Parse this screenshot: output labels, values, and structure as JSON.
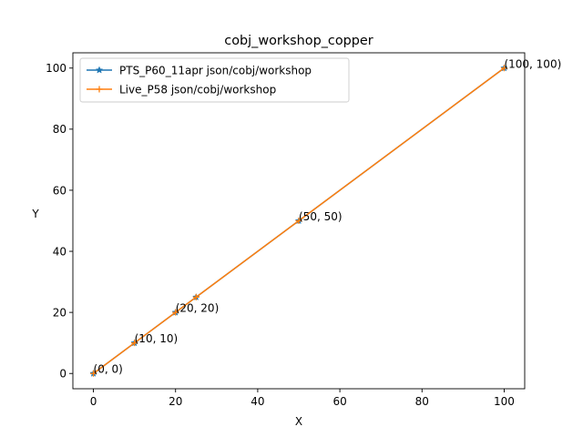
{
  "chart_data": {
    "type": "line",
    "title": "cobj_workshop_copper",
    "xlabel": "X",
    "ylabel": "Y",
    "xlim": [
      -5,
      105
    ],
    "ylim": [
      -5,
      105
    ],
    "xticks": [
      0,
      20,
      40,
      60,
      80,
      100
    ],
    "yticks": [
      0,
      20,
      40,
      60,
      80,
      100
    ],
    "grid": false,
    "legend_position": "top-left",
    "series": [
      {
        "name": "PTS_P60_11apr json/cobj/workshop",
        "color": "#1f77b4",
        "marker": "star",
        "x": [
          0,
          10,
          20,
          25,
          50,
          100
        ],
        "y": [
          0,
          10,
          20,
          25,
          50,
          100
        ]
      },
      {
        "name": "Live_P58 json/cobj/workshop",
        "color": "#ff7f0e",
        "marker": "plus",
        "x": [
          0,
          10,
          20,
          25,
          50,
          100
        ],
        "y": [
          0,
          10,
          20,
          25,
          50,
          100
        ]
      }
    ],
    "annotations": [
      {
        "text": "(0, 0)",
        "x": 0,
        "y": 0
      },
      {
        "text": "(10, 10)",
        "x": 10,
        "y": 10
      },
      {
        "text": "(20, 20)",
        "x": 20,
        "y": 20
      },
      {
        "text": "(50, 50)",
        "x": 50,
        "y": 50
      },
      {
        "text": "(100, 100)",
        "x": 100,
        "y": 100
      }
    ]
  }
}
